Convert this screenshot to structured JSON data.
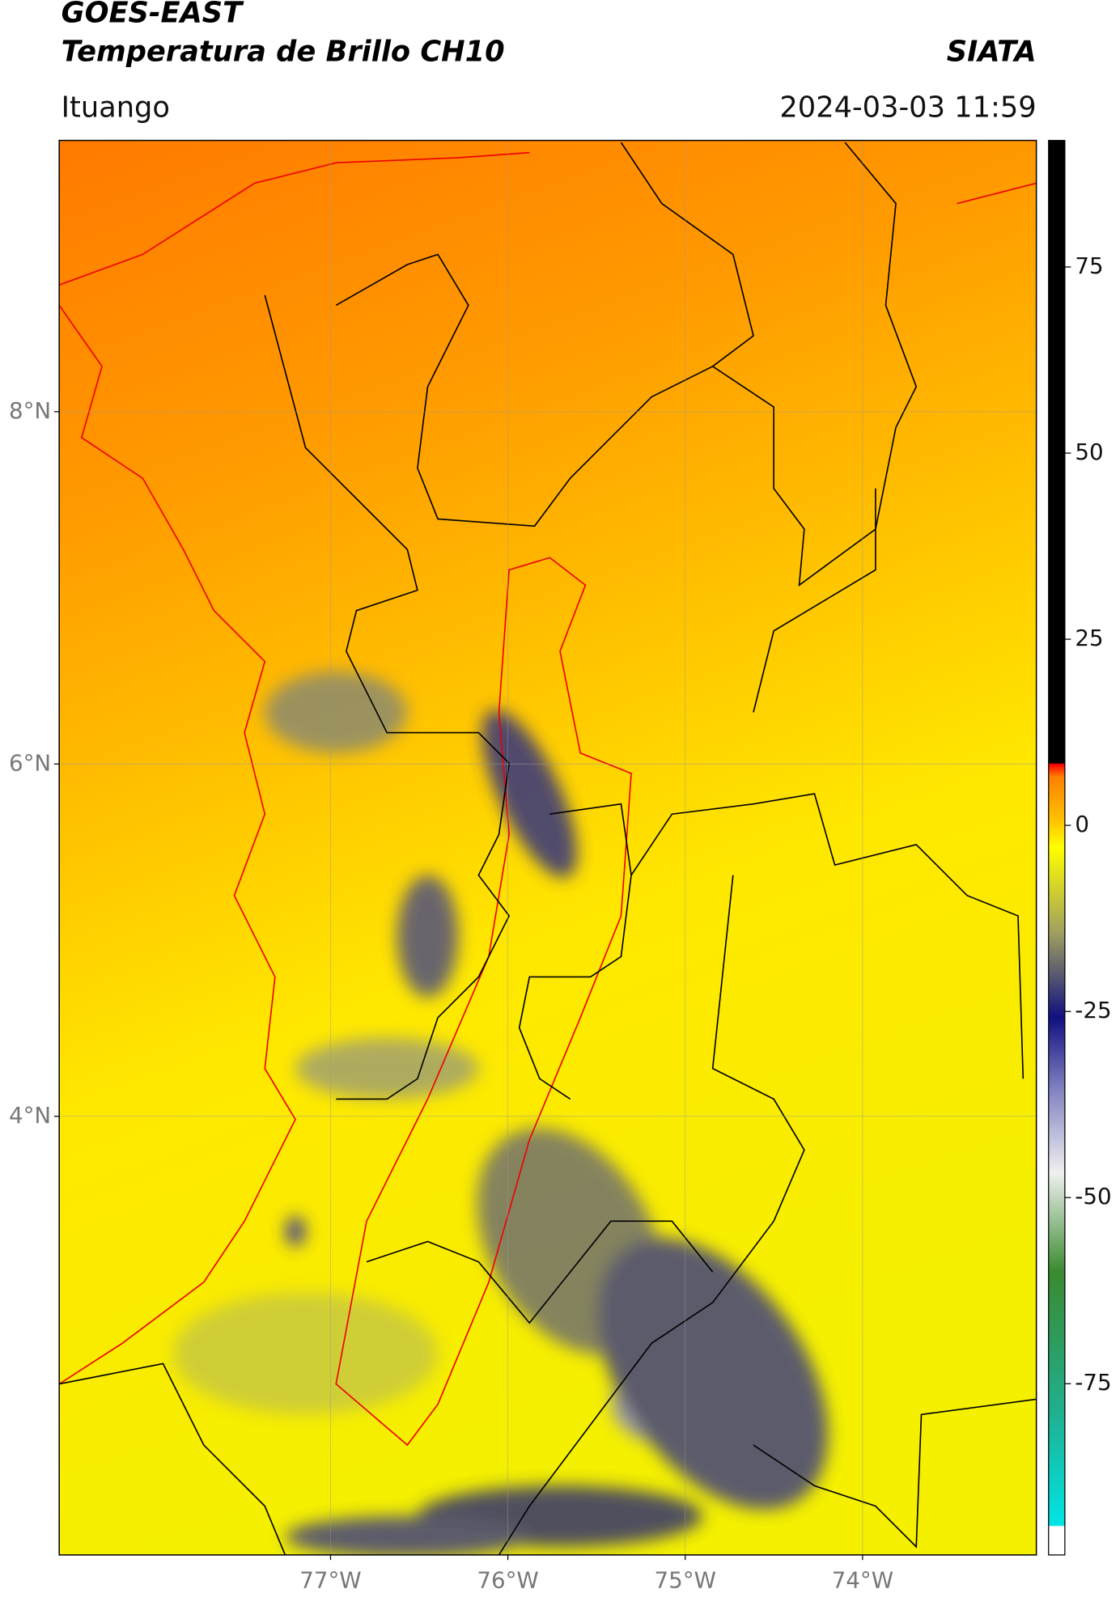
{
  "header": {
    "source": "GOES-EAST",
    "product": "Temperatura de Brillo CH10",
    "agency": "SIATA",
    "location": "Ituango",
    "timestamp": "2024-03-03 11:59"
  },
  "map": {
    "lat_range": [
      1.51,
      9.54
    ],
    "lon_range": [
      -78.53,
      -73.02
    ],
    "grid": true,
    "lat_ticks": [
      {
        "value": 8,
        "label": "8°N"
      },
      {
        "value": 6,
        "label": "6°N"
      },
      {
        "value": 4,
        "label": "4°N"
      }
    ],
    "lon_ticks": [
      {
        "value": -77,
        "label": "77°W"
      },
      {
        "value": -76,
        "label": "76°W"
      },
      {
        "value": -75,
        "label": "75°W"
      },
      {
        "value": -74,
        "label": "74°W"
      }
    ]
  },
  "colorbar": {
    "range": [
      -98,
      92
    ],
    "ticks": [
      75,
      50,
      25,
      0,
      -25,
      -50,
      -75
    ]
  }
}
